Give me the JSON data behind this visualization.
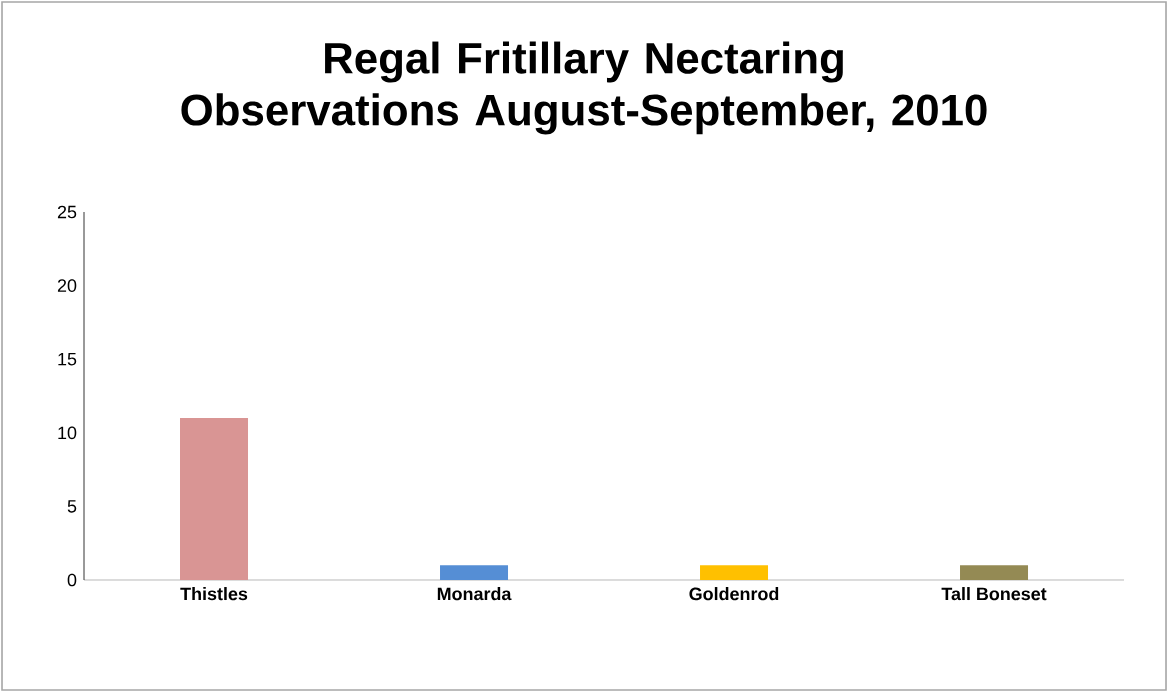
{
  "chart_data": {
    "type": "bar",
    "title": "Regal Fritillary Nectaring Observations August-September, 2010",
    "categories": [
      "Thistles",
      "Monarda",
      "Goldenrod",
      "Tall Boneset"
    ],
    "values": [
      11,
      1,
      1,
      1
    ],
    "colors": [
      "#d99594",
      "#558ed5",
      "#ffc000",
      "#948a54"
    ],
    "ylim": [
      0,
      25
    ],
    "yticks": [
      0,
      5,
      10,
      15,
      20,
      25
    ],
    "grid": false
  }
}
